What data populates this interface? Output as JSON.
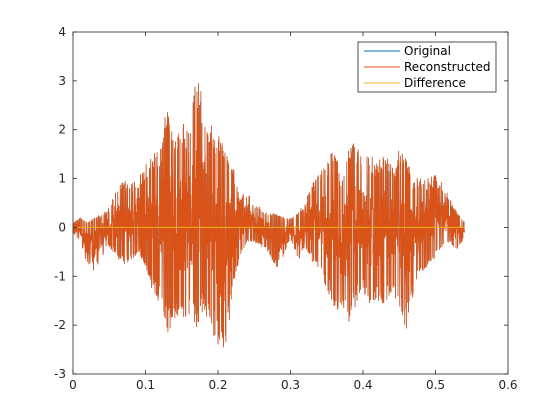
{
  "chart_data": {
    "type": "line",
    "title": "",
    "xlabel": "",
    "ylabel": "",
    "xlim": [
      0,
      0.6
    ],
    "ylim": [
      -3,
      4
    ],
    "x_ticks": [
      0,
      0.1,
      0.2,
      0.3,
      0.4,
      0.5,
      0.6
    ],
    "x_tick_labels": [
      "0",
      "0.1",
      "0.2",
      "0.3",
      "0.4",
      "0.5",
      "0.6"
    ],
    "y_ticks": [
      -3,
      -2,
      -1,
      0,
      1,
      2,
      3,
      4
    ],
    "y_tick_labels": [
      "-3",
      "-2",
      "-1",
      "0",
      "1",
      "2",
      "3",
      "4"
    ],
    "grid": false,
    "legend_position": "top-right",
    "colors": {
      "axes": "#262626",
      "original": "#0072bd",
      "reconstructed": "#d95319",
      "difference": "#edb120"
    },
    "series": [
      {
        "name": "Original",
        "color": "#0072bd",
        "x": [
          0,
          0.01,
          0.02,
          0.03,
          0.04,
          0.05,
          0.06,
          0.07,
          0.08,
          0.09,
          0.1,
          0.11,
          0.12,
          0.13,
          0.14,
          0.15,
          0.16,
          0.17,
          0.18,
          0.19,
          0.2,
          0.21,
          0.22,
          0.23,
          0.24,
          0.25,
          0.26,
          0.27,
          0.28,
          0.29,
          0.3,
          0.31,
          0.32,
          0.33,
          0.34,
          0.35,
          0.36,
          0.37,
          0.38,
          0.39,
          0.4,
          0.41,
          0.42,
          0.43,
          0.44,
          0.45,
          0.46,
          0.47,
          0.48,
          0.49,
          0.5,
          0.51,
          0.52,
          0.53,
          0.54
        ],
        "y_min": [
          -0.1,
          -0.3,
          -0.8,
          -0.9,
          -0.6,
          -0.4,
          -0.6,
          -0.8,
          -0.7,
          -0.5,
          -0.9,
          -1.3,
          -1.6,
          -2.2,
          -1.9,
          -2.0,
          -1.8,
          -2.2,
          -1.7,
          -2.1,
          -2.4,
          -2.7,
          -1.3,
          -0.6,
          -0.3,
          -0.3,
          -0.4,
          -0.5,
          -0.9,
          -0.6,
          -0.2,
          -0.7,
          -0.4,
          -0.7,
          -0.9,
          -1.3,
          -1.6,
          -1.8,
          -2.0,
          -1.6,
          -1.3,
          -1.7,
          -1.5,
          -1.6,
          -1.3,
          -1.7,
          -2.1,
          -1.3,
          -1.0,
          -0.8,
          -0.6,
          -0.4,
          -0.3,
          -0.5,
          -0.2
        ],
        "y_max": [
          0.1,
          0.2,
          0.1,
          0.2,
          0.3,
          0.4,
          0.9,
          1.0,
          0.9,
          1.0,
          1.3,
          1.5,
          1.6,
          2.6,
          1.7,
          2.3,
          2.0,
          3.1,
          2.7,
          2.1,
          1.9,
          1.6,
          1.3,
          0.6,
          0.8,
          0.5,
          0.4,
          0.3,
          0.3,
          0.2,
          0.2,
          0.3,
          0.5,
          0.9,
          1.1,
          1.4,
          1.6,
          1.1,
          1.6,
          1.8,
          1.4,
          1.5,
          1.3,
          1.7,
          1.2,
          1.6,
          1.4,
          1.0,
          1.1,
          1.0,
          1.1,
          0.9,
          0.6,
          0.3,
          0.1
        ]
      },
      {
        "name": "Reconstructed",
        "color": "#d95319",
        "x": [
          0,
          0.01,
          0.02,
          0.03,
          0.04,
          0.05,
          0.06,
          0.07,
          0.08,
          0.09,
          0.1,
          0.11,
          0.12,
          0.13,
          0.14,
          0.15,
          0.16,
          0.17,
          0.18,
          0.19,
          0.2,
          0.21,
          0.22,
          0.23,
          0.24,
          0.25,
          0.26,
          0.27,
          0.28,
          0.29,
          0.3,
          0.31,
          0.32,
          0.33,
          0.34,
          0.35,
          0.36,
          0.37,
          0.38,
          0.39,
          0.4,
          0.41,
          0.42,
          0.43,
          0.44,
          0.45,
          0.46,
          0.47,
          0.48,
          0.49,
          0.5,
          0.51,
          0.52,
          0.53,
          0.54
        ],
        "y_min": [
          -0.1,
          -0.3,
          -0.8,
          -0.9,
          -0.6,
          -0.4,
          -0.6,
          -0.8,
          -0.7,
          -0.5,
          -0.9,
          -1.3,
          -1.6,
          -2.2,
          -1.9,
          -2.0,
          -1.8,
          -2.2,
          -1.7,
          -2.1,
          -2.4,
          -2.7,
          -1.3,
          -0.6,
          -0.3,
          -0.3,
          -0.4,
          -0.5,
          -0.9,
          -0.6,
          -0.2,
          -0.7,
          -0.4,
          -0.7,
          -0.9,
          -1.3,
          -1.6,
          -1.8,
          -2.0,
          -1.6,
          -1.3,
          -1.7,
          -1.5,
          -1.6,
          -1.3,
          -1.7,
          -2.1,
          -1.3,
          -1.0,
          -0.8,
          -0.6,
          -0.4,
          -0.3,
          -0.5,
          -0.2
        ],
        "y_max": [
          0.1,
          0.2,
          0.1,
          0.2,
          0.3,
          0.4,
          0.9,
          1.0,
          0.9,
          1.0,
          1.3,
          1.5,
          1.6,
          2.6,
          1.7,
          2.3,
          2.0,
          3.1,
          2.7,
          2.1,
          1.9,
          1.6,
          1.3,
          0.6,
          0.8,
          0.5,
          0.4,
          0.3,
          0.3,
          0.2,
          0.2,
          0.3,
          0.5,
          0.9,
          1.1,
          1.4,
          1.6,
          1.1,
          1.6,
          1.8,
          1.4,
          1.5,
          1.3,
          1.7,
          1.2,
          1.6,
          1.4,
          1.0,
          1.1,
          1.0,
          1.1,
          0.9,
          0.6,
          0.3,
          0.1
        ]
      },
      {
        "name": "Difference",
        "color": "#edb120",
        "x": [
          0,
          0.54
        ],
        "y": [
          0,
          0
        ]
      }
    ]
  }
}
